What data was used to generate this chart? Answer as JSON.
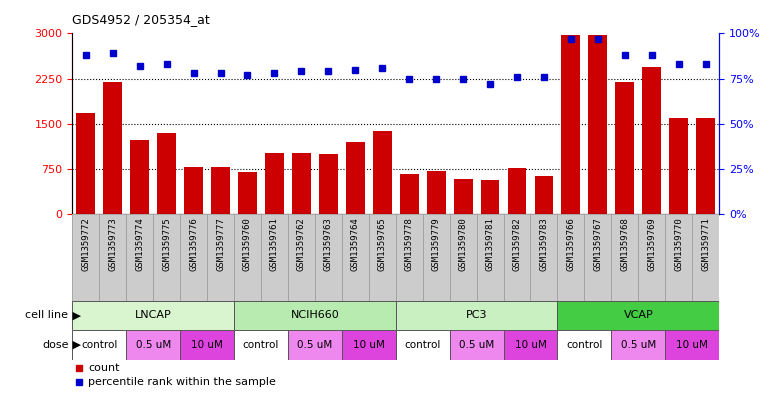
{
  "title": "GDS4952 / 205354_at",
  "samples": [
    "GSM1359772",
    "GSM1359773",
    "GSM1359774",
    "GSM1359775",
    "GSM1359776",
    "GSM1359777",
    "GSM1359760",
    "GSM1359761",
    "GSM1359762",
    "GSM1359763",
    "GSM1359764",
    "GSM1359765",
    "GSM1359778",
    "GSM1359779",
    "GSM1359780",
    "GSM1359781",
    "GSM1359782",
    "GSM1359783",
    "GSM1359766",
    "GSM1359767",
    "GSM1359768",
    "GSM1359769",
    "GSM1359770",
    "GSM1359771"
  ],
  "counts": [
    1680,
    2200,
    1230,
    1350,
    790,
    790,
    700,
    1020,
    1010,
    1000,
    1190,
    1380,
    670,
    720,
    580,
    560,
    760,
    630,
    2970,
    2970,
    2200,
    2450,
    1590,
    1590
  ],
  "percentiles": [
    88,
    89,
    82,
    83,
    78,
    78,
    77,
    78,
    79,
    79,
    80,
    81,
    75,
    75,
    75,
    72,
    76,
    76,
    97,
    97,
    88,
    88,
    83,
    83
  ],
  "cell_lines": [
    {
      "name": "LNCAP",
      "start": 0,
      "end": 6,
      "color": "#d8f5d0"
    },
    {
      "name": "NCIH660",
      "start": 6,
      "end": 12,
      "color": "#b8ebb0"
    },
    {
      "name": "PC3",
      "start": 12,
      "end": 18,
      "color": "#c8f0c0"
    },
    {
      "name": "VCAP",
      "start": 18,
      "end": 24,
      "color": "#44cc44"
    }
  ],
  "doses": [
    {
      "label": "control",
      "start": 0,
      "end": 2,
      "color": "#ffffff"
    },
    {
      "label": "0.5 uM",
      "start": 2,
      "end": 4,
      "color": "#ee88ee"
    },
    {
      "label": "10 uM",
      "start": 4,
      "end": 6,
      "color": "#dd44dd"
    },
    {
      "label": "control",
      "start": 6,
      "end": 8,
      "color": "#ffffff"
    },
    {
      "label": "0.5 uM",
      "start": 8,
      "end": 10,
      "color": "#ee88ee"
    },
    {
      "label": "10 uM",
      "start": 10,
      "end": 12,
      "color": "#dd44dd"
    },
    {
      "label": "control",
      "start": 12,
      "end": 14,
      "color": "#ffffff"
    },
    {
      "label": "0.5 uM",
      "start": 14,
      "end": 16,
      "color": "#ee88ee"
    },
    {
      "label": "10 uM",
      "start": 16,
      "end": 18,
      "color": "#dd44dd"
    },
    {
      "label": "control",
      "start": 18,
      "end": 20,
      "color": "#ffffff"
    },
    {
      "label": "0.5 uM",
      "start": 20,
      "end": 22,
      "color": "#ee88ee"
    },
    {
      "label": "10 uM",
      "start": 22,
      "end": 24,
      "color": "#dd44dd"
    }
  ],
  "bar_color": "#cc0000",
  "dot_color": "#0000cc",
  "ylim_left": [
    0,
    3000
  ],
  "ylim_right": [
    0,
    100
  ],
  "yticks_left": [
    0,
    750,
    1500,
    2250,
    3000
  ],
  "yticks_right": [
    0,
    25,
    50,
    75,
    100
  ],
  "grid_values": [
    750,
    1500,
    2250
  ],
  "sample_bg_color": "#cccccc",
  "cell_line_colors": [
    "#d8f5d0",
    "#b8ebb0",
    "#c8f0c0",
    "#44cc44"
  ],
  "dose_colors": {
    "control": "#ffffff",
    "0.5 uM": "#ee88ee",
    "10 uM": "#dd44dd"
  }
}
